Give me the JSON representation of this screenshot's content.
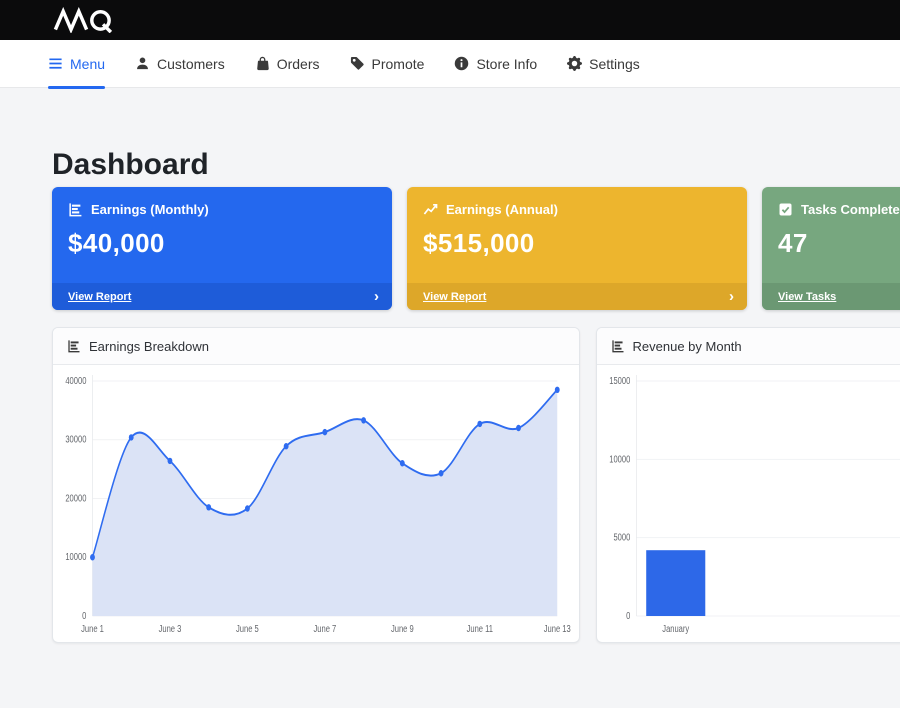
{
  "topbar": {
    "brand": "MQ"
  },
  "nav": {
    "active_color": "#2368f0",
    "items": [
      {
        "label": "Menu",
        "icon": "hamburger-icon",
        "active": true
      },
      {
        "label": "Customers",
        "icon": "person-icon",
        "active": false
      },
      {
        "label": "Orders",
        "icon": "bag-icon",
        "active": false
      },
      {
        "label": "Promote",
        "icon": "tag-icon",
        "active": false
      },
      {
        "label": "Store Info",
        "icon": "info-icon",
        "active": false
      },
      {
        "label": "Settings",
        "icon": "gear-icon",
        "active": false
      }
    ]
  },
  "page": {
    "title": "Dashboard"
  },
  "icons": {
    "chevron_right": "›"
  },
  "cards": [
    {
      "title": "Earnings (Monthly)",
      "value": "$40,000",
      "link": "View Report",
      "icon": "horizontal-bars-icon",
      "color": "#2468ee",
      "footer_color": "#1e5cd9"
    },
    {
      "title": "Earnings (Annual)",
      "value": "$515,000",
      "link": "View Report",
      "icon": "line-chart-icon",
      "color": "#edb52e",
      "footer_color": "#dda729"
    },
    {
      "title": "Tasks Completed",
      "value": "47",
      "link": "View Tasks",
      "icon": "check-square-icon",
      "color": "#77a77f",
      "footer_color": "#6b9873"
    }
  ],
  "chart_data": [
    {
      "type": "line",
      "title": "Earnings Breakdown",
      "x": [
        "June 1",
        "June 2",
        "June 3",
        "June 4",
        "June 5",
        "June 6",
        "June 7",
        "June 8",
        "June 9",
        "June 10",
        "June 11",
        "June 12",
        "June 13"
      ],
      "values": [
        10000,
        30400,
        26400,
        18500,
        18300,
        28900,
        31300,
        33300,
        26000,
        24300,
        32700,
        32000,
        38500
      ],
      "xlabel": "",
      "ylabel": "",
      "ylim": [
        0,
        40000
      ],
      "yticks": [
        0,
        10000,
        20000,
        30000,
        40000
      ],
      "xticks": [
        "June 1",
        "June 3",
        "June 5",
        "June 7",
        "June 9",
        "June 11",
        "June 13"
      ],
      "line_color": "#2f6cf0",
      "fill_color": "#dbe3f6",
      "grid": true,
      "legend": false
    },
    {
      "type": "bar",
      "title": "Revenue by Month",
      "categories": [
        "January"
      ],
      "values": [
        4200
      ],
      "xlabel": "",
      "ylabel": "",
      "ylim": [
        0,
        15000
      ],
      "yticks": [
        0,
        5000,
        10000,
        15000
      ],
      "bar_color": "#2d68e8",
      "grid": true,
      "legend": false
    }
  ]
}
